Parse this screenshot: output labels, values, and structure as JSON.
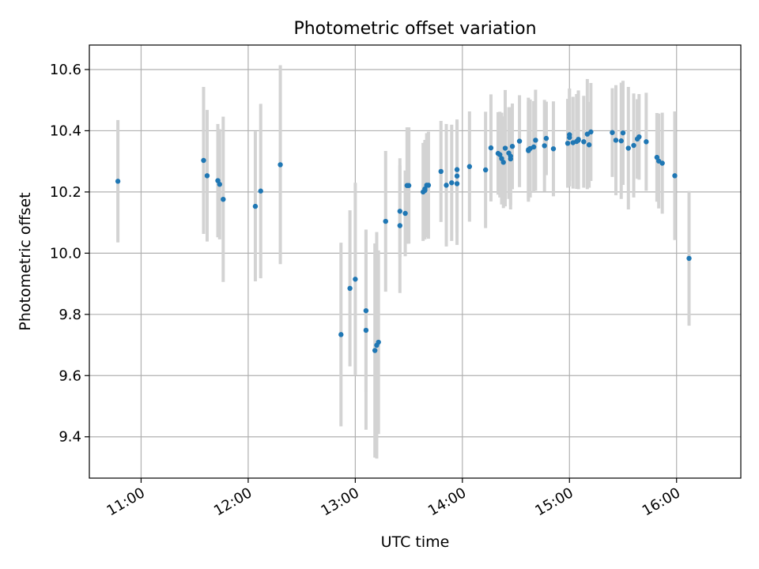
{
  "chart_data": {
    "type": "scatter",
    "title": "Photometric offset variation",
    "xlabel": "UTC time",
    "ylabel": "Photometric offset",
    "x_ticks": [
      "11:00",
      "12:00",
      "13:00",
      "14:00",
      "15:00",
      "16:00"
    ],
    "y_ticks": [
      "9.4",
      "9.6",
      "9.8",
      "10.0",
      "10.2",
      "10.4",
      "10.6"
    ],
    "xlim": [
      "10:31",
      "16:36"
    ],
    "ylim": [
      9.265,
      10.68
    ],
    "grid": true,
    "marker_color": "#1f77b4",
    "errorbar_color": "#d3d3d3",
    "series": [
      {
        "x": [
          "10:47",
          "11:35",
          "11:37",
          "11:43",
          "11:44",
          "11:46",
          "12:04",
          "12:07",
          "12:18",
          "12:52",
          "12:57",
          "13:00",
          "13:06",
          "13:06",
          "13:11",
          "13:12",
          "13:13",
          "13:17",
          "13:25",
          "13:25",
          "13:28",
          "13:29",
          "13:30",
          "13:38",
          "13:39",
          "13:39",
          "13:40",
          "13:41",
          "13:48",
          "13:51",
          "13:54",
          "13:57",
          "13:57",
          "13:57",
          "14:04",
          "14:13",
          "14:16",
          "14:20",
          "14:21",
          "14:22",
          "14:23",
          "14:24",
          "14:26",
          "14:27",
          "14:27",
          "14:28",
          "14:32",
          "14:37",
          "14:37",
          "14:38",
          "14:40",
          "14:41",
          "14:46",
          "14:47",
          "14:51",
          "14:59",
          "15:00",
          "15:00",
          "15:02",
          "15:04",
          "15:05",
          "15:05",
          "15:08",
          "15:10",
          "15:11",
          "15:12",
          "15:24",
          "15:26",
          "15:29",
          "15:30",
          "15:33",
          "15:36",
          "15:38",
          "15:39",
          "15:43",
          "15:49",
          "15:50",
          "15:52",
          "15:59",
          "16:07"
        ],
        "y": [
          10.235,
          10.303,
          10.253,
          10.237,
          10.225,
          10.176,
          10.153,
          10.203,
          10.289,
          9.734,
          9.885,
          9.915,
          9.812,
          9.748,
          9.682,
          9.699,
          9.709,
          10.104,
          10.09,
          10.137,
          10.13,
          10.221,
          10.221,
          10.2,
          10.21,
          10.205,
          10.222,
          10.222,
          10.267,
          10.222,
          10.23,
          10.273,
          10.227,
          10.252,
          10.283,
          10.272,
          10.344,
          10.326,
          10.322,
          10.309,
          10.297,
          10.343,
          10.327,
          10.317,
          10.308,
          10.349,
          10.366,
          10.338,
          10.335,
          10.342,
          10.347,
          10.369,
          10.351,
          10.375,
          10.341,
          10.359,
          10.387,
          10.378,
          10.361,
          10.365,
          10.372,
          10.369,
          10.364,
          10.389,
          10.354,
          10.396,
          10.394,
          10.369,
          10.367,
          10.393,
          10.343,
          10.352,
          10.373,
          10.38,
          10.364,
          10.313,
          10.301,
          10.294,
          10.253,
          9.983
        ],
        "err": [
          0.2,
          0.24,
          0.215,
          0.185,
          0.18,
          0.27,
          0.245,
          0.285,
          0.325,
          0.3,
          0.255,
          0.315,
          0.265,
          0.325,
          0.35,
          0.37,
          0.3,
          0.23,
          0.22,
          0.15,
          0.14,
          0.19,
          0.19,
          0.16,
          0.16,
          0.16,
          0.17,
          0.175,
          0.165,
          0.2,
          0.19,
          0.16,
          0.2,
          0.185,
          0.18,
          0.19,
          0.175,
          0.135,
          0.14,
          0.15,
          0.15,
          0.19,
          0.15,
          0.16,
          0.165,
          0.14,
          0.15,
          0.17,
          0.16,
          0.16,
          0.15,
          0.165,
          0.15,
          0.12,
          0.155,
          0.145,
          0.15,
          0.16,
          0.15,
          0.155,
          0.16,
          0.16,
          0.15,
          0.18,
          0.14,
          0.16,
          0.145,
          0.18,
          0.19,
          0.17,
          0.2,
          0.17,
          0.13,
          0.14,
          0.16,
          0.145,
          0.155,
          0.165,
          0.21,
          0.22
        ]
      }
    ]
  }
}
